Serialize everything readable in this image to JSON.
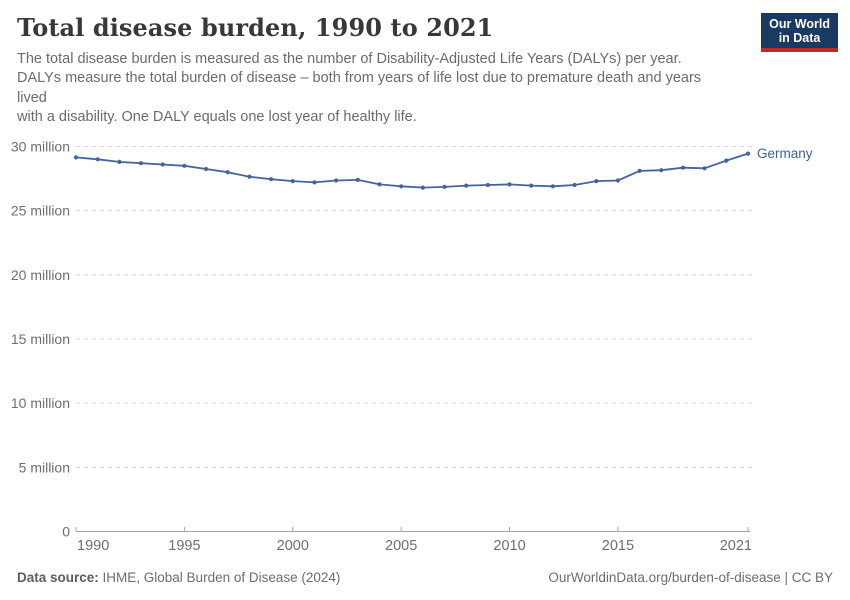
{
  "header": {
    "title": "Total disease burden, 1990 to 2021",
    "subtitle_lines": [
      "The total disease burden is measured as the number of Disability-Adjusted Life Years (DALYs) per year.",
      "DALYs measure the total burden of disease – both from years of life lost due to premature death and years",
      "lived",
      "with a disability. One DALY equals one lost year of healthy life."
    ],
    "logo": {
      "line1": "Our World",
      "line2": "in Data"
    }
  },
  "chart_data": {
    "type": "line",
    "title": "Total disease burden, 1990 to 2021",
    "xlabel": "",
    "ylabel": "",
    "values_unit": "million DALYs per year",
    "xlim": [
      1990,
      2021
    ],
    "ylim_millions": [
      0,
      30
    ],
    "grid": "dashed-horizontal",
    "legend_position": "end-of-line-label",
    "x": [
      1990,
      1991,
      1992,
      1993,
      1994,
      1995,
      1996,
      1997,
      1998,
      1999,
      2000,
      2001,
      2002,
      2003,
      2004,
      2005,
      2006,
      2007,
      2008,
      2009,
      2010,
      2011,
      2012,
      2013,
      2014,
      2015,
      2016,
      2017,
      2018,
      2019,
      2020,
      2021
    ],
    "series": [
      {
        "name": "Germany",
        "values_millions": [
          29.15,
          29.0,
          28.8,
          28.7,
          28.6,
          28.5,
          28.25,
          28.0,
          27.65,
          27.45,
          27.3,
          27.2,
          27.35,
          27.4,
          27.05,
          26.9,
          26.8,
          26.85,
          26.95,
          27.0,
          27.05,
          26.95,
          26.9,
          27.0,
          27.3,
          27.35,
          28.1,
          28.15,
          28.35,
          28.3,
          28.9,
          29.45
        ]
      }
    ],
    "yticks": [
      {
        "value_millions": 0,
        "label": "0"
      },
      {
        "value_millions": 5,
        "label": "5 million"
      },
      {
        "value_millions": 10,
        "label": "10 million"
      },
      {
        "value_millions": 15,
        "label": "15 million"
      },
      {
        "value_millions": 20,
        "label": "20 million"
      },
      {
        "value_millions": 25,
        "label": "25 million"
      },
      {
        "value_millions": 30,
        "label": "30 million"
      }
    ],
    "xticks": [
      {
        "value": 1990,
        "label": "1990"
      },
      {
        "value": 1995,
        "label": "1995"
      },
      {
        "value": 2000,
        "label": "2000"
      },
      {
        "value": 2005,
        "label": "2005"
      },
      {
        "value": 2010,
        "label": "2010"
      },
      {
        "value": 2015,
        "label": "2015"
      },
      {
        "value": 2021,
        "label": "2021"
      }
    ]
  },
  "footer": {
    "datasource_label": "Data source:",
    "datasource_value": " IHME, Global Burden of Disease (2024)",
    "link": "OurWorldinData.org/burden-of-disease | CC BY"
  },
  "colors": {
    "series_blue": "#44659c",
    "entity_label": "#3d5f9b",
    "gridline": "#d7d7d7",
    "axis": "#a3a3a3",
    "tick_text": "#6e6e6e",
    "logo_navy": "#1a3a63",
    "logo_red": "#c3291e"
  }
}
